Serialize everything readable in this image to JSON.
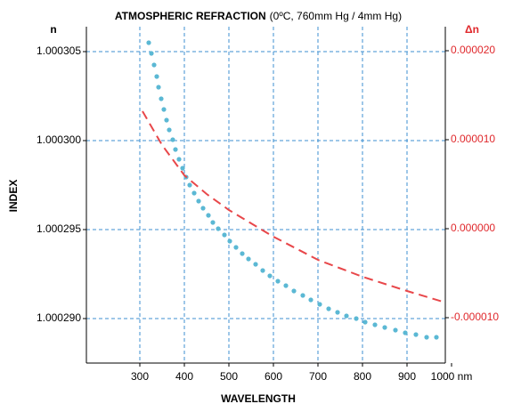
{
  "chart_data": {
    "type": "line",
    "title": "ATMOSPHERIC REFRACTION",
    "subtitle": "(0ºC, 760mm Hg / 4mm Hg)",
    "xlabel": "WAVELENGTH",
    "ylabel": "INDEX",
    "y_unit_label": "n",
    "y2_unit_label": "Δn",
    "xlim": [
      180,
      986
    ],
    "xticks": [
      300,
      400,
      500,
      600,
      700,
      800,
      900,
      {
        "value": 1000,
        "label": "1000 nm"
      }
    ],
    "ylim": [
      1.0002875,
      1.0003064
    ],
    "yticks": [
      {
        "value": 1.00029,
        "label": "1.000290"
      },
      1.000295,
      {
        "value": 1.0003,
        "label": "1.000300"
      },
      1.000305
    ],
    "y2lim": [
      -1.51e-05,
      2.27e-05
    ],
    "y2ticks": [
      {
        "value": -1e-05,
        "label": "-0.000010"
      },
      {
        "value": 0,
        "label": "0.000000"
      },
      {
        "value": 1e-05,
        "label": "0.000010"
      },
      {
        "value": 2e-05,
        "label": "0.000020"
      }
    ],
    "grid": true,
    "series": [
      {
        "style": "dotted",
        "color": "#5bb8d4",
        "x": [
          320,
          326,
          332,
          338,
          342,
          348,
          354,
          360,
          366,
          374,
          380,
          388,
          396,
          404,
          412,
          422,
          432,
          442,
          454,
          464,
          476,
          490,
          502,
          516,
          530,
          544,
          560,
          576,
          592,
          610,
          628,
          646,
          666,
          684,
          704,
          724,
          744,
          764,
          786,
          806,
          828,
          850,
          874,
          896,
          920,
          944,
          966
        ],
        "values": [
          1.0003055,
          1.0003049,
          1.00030425,
          1.0003036,
          1.000303,
          1.00030235,
          1.00030175,
          1.00030115,
          1.0003006,
          1.00030005,
          1.0002995,
          1.00029895,
          1.00029845,
          1.00029795,
          1.0002975,
          1.00029705,
          1.0002966,
          1.0002962,
          1.0002958,
          1.0002954,
          1.00029505,
          1.0002947,
          1.00029435,
          1.000294,
          1.00029365,
          1.00029335,
          1.00029305,
          1.0002927,
          1.0002924,
          1.0002921,
          1.00029185,
          1.00029155,
          1.0002913,
          1.00029105,
          1.0002908,
          1.00029055,
          1.00029035,
          1.00029015,
          1.00029,
          1.0002898,
          1.00028965,
          1.0002895,
          1.00028935,
          1.0002892,
          1.0002891,
          1.00028895,
          1.00028895
        ]
      },
      {
        "style": "dashed",
        "color": "#e8474a",
        "axis": "y2",
        "x": [
          306,
          350,
          400,
          450,
          500,
          600,
          700,
          800,
          900,
          980
        ],
        "values": [
          1.32e-05,
          9.4e-06,
          6e-06,
          3.9e-06,
          2.1e-06,
          -9e-07,
          -3.5e-06,
          -5.4e-06,
          -7e-06,
          -8.2e-06
        ]
      }
    ]
  }
}
